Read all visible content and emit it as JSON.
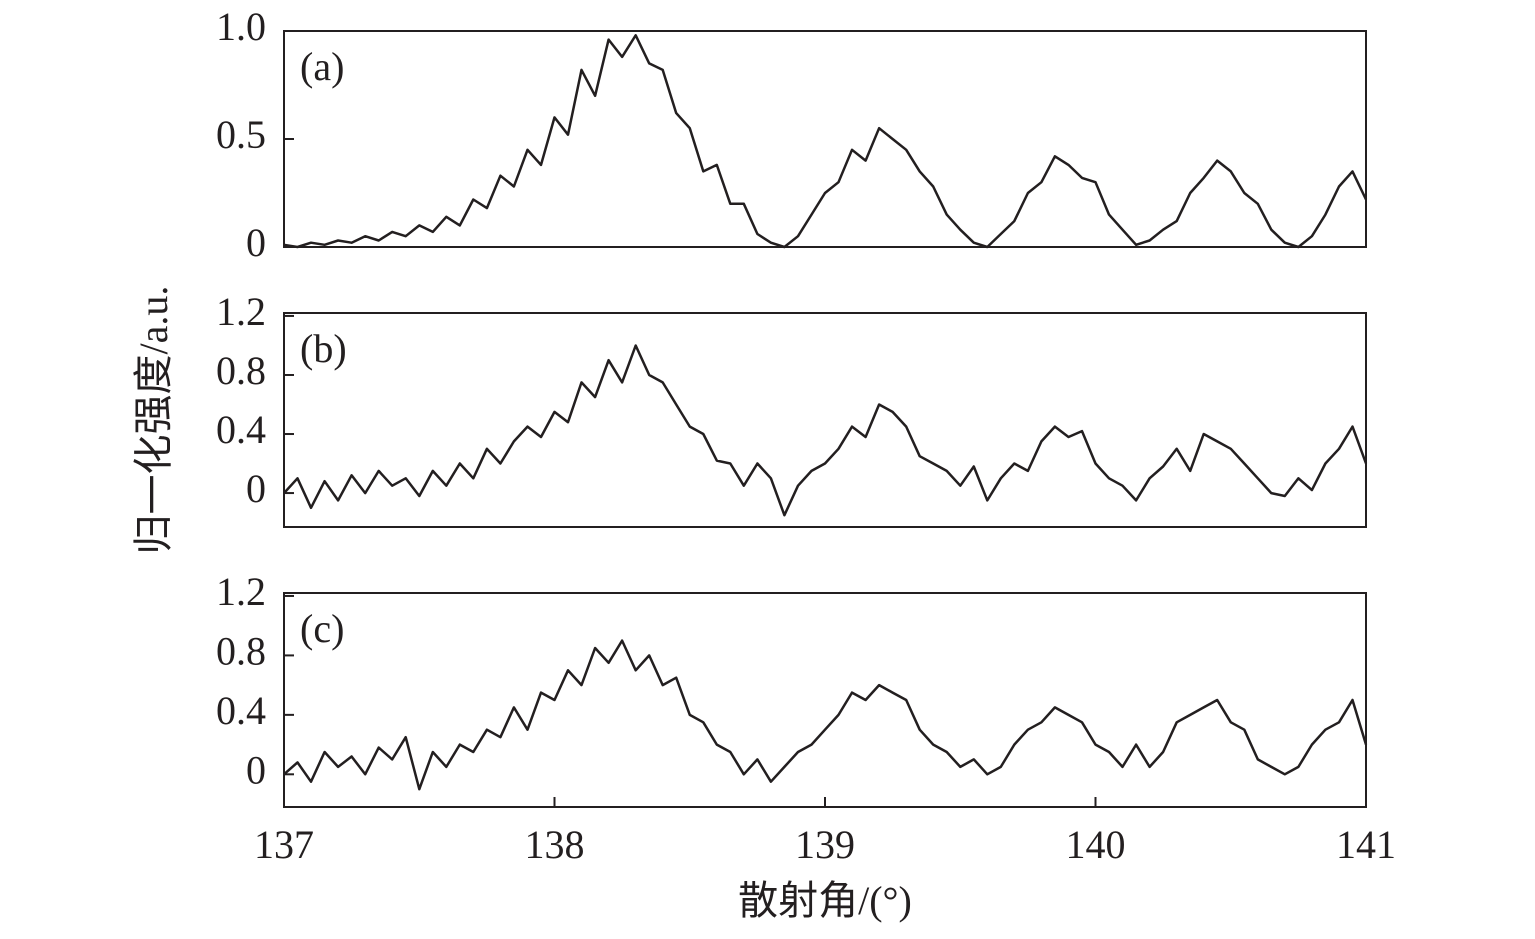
{
  "chart_data": [
    {
      "type": "line",
      "label": "(a)",
      "color": "#231f20",
      "x": [
        137,
        137.05,
        137.1,
        137.15,
        137.2,
        137.25,
        137.3,
        137.35,
        137.4,
        137.45,
        137.5,
        137.55,
        137.6,
        137.65,
        137.7,
        137.75,
        137.8,
        137.85,
        137.9,
        137.95,
        138,
        138.05,
        138.1,
        138.15,
        138.2,
        138.25,
        138.3,
        138.35,
        138.4,
        138.45,
        138.5,
        138.55,
        138.6,
        138.65,
        138.7,
        138.75,
        138.8,
        138.85,
        138.9,
        138.95,
        139,
        139.05,
        139.1,
        139.15,
        139.2,
        139.25,
        139.3,
        139.35,
        139.4,
        139.45,
        139.5,
        139.55,
        139.6,
        139.65,
        139.7,
        139.75,
        139.8,
        139.85,
        139.9,
        139.95,
        140,
        140.05,
        140.1,
        140.15,
        140.2,
        140.25,
        140.3,
        140.35,
        140.4,
        140.45,
        140.5,
        140.55,
        140.6,
        140.65,
        140.7,
        140.75,
        140.8,
        140.85,
        140.9,
        140.95,
        141
      ],
      "values": [
        0.01,
        0.0,
        0.02,
        0.01,
        0.03,
        0.02,
        0.05,
        0.03,
        0.07,
        0.05,
        0.1,
        0.07,
        0.14,
        0.1,
        0.22,
        0.18,
        0.33,
        0.28,
        0.45,
        0.38,
        0.6,
        0.52,
        0.82,
        0.7,
        0.96,
        0.88,
        0.98,
        0.85,
        0.82,
        0.62,
        0.55,
        0.35,
        0.38,
        0.2,
        0.2,
        0.06,
        0.02,
        0.0,
        0.05,
        0.15,
        0.25,
        0.3,
        0.45,
        0.4,
        0.55,
        0.5,
        0.45,
        0.35,
        0.28,
        0.15,
        0.08,
        0.02,
        0.0,
        0.06,
        0.12,
        0.25,
        0.3,
        0.42,
        0.38,
        0.32,
        0.3,
        0.15,
        0.08,
        0.01,
        0.03,
        0.08,
        0.12,
        0.25,
        0.32,
        0.4,
        0.35,
        0.25,
        0.2,
        0.08,
        0.02,
        0.0,
        0.05,
        0.15,
        0.28,
        0.35,
        0.22
      ],
      "xlim": [
        137,
        141
      ],
      "ylim": [
        0,
        1
      ],
      "yticks": [
        0,
        0.5,
        {
          "value": 1,
          "label": "1.0"
        }
      ]
    },
    {
      "type": "line",
      "label": "(b)",
      "color": "#231f20",
      "ylabel": "归一化强度/a.u.",
      "x": [
        137,
        137.05,
        137.1,
        137.15,
        137.2,
        137.25,
        137.3,
        137.35,
        137.4,
        137.45,
        137.5,
        137.55,
        137.6,
        137.65,
        137.7,
        137.75,
        137.8,
        137.85,
        137.9,
        137.95,
        138,
        138.05,
        138.1,
        138.15,
        138.2,
        138.25,
        138.3,
        138.35,
        138.4,
        138.45,
        138.5,
        138.55,
        138.6,
        138.65,
        138.7,
        138.75,
        138.8,
        138.85,
        138.9,
        138.95,
        139,
        139.05,
        139.1,
        139.15,
        139.2,
        139.25,
        139.3,
        139.35,
        139.4,
        139.45,
        139.5,
        139.55,
        139.6,
        139.65,
        139.7,
        139.75,
        139.8,
        139.85,
        139.9,
        139.95,
        140,
        140.05,
        140.1,
        140.15,
        140.2,
        140.25,
        140.3,
        140.35,
        140.4,
        140.45,
        140.5,
        140.55,
        140.6,
        140.65,
        140.7,
        140.75,
        140.8,
        140.85,
        140.9,
        140.95,
        141
      ],
      "values": [
        0.0,
        0.1,
        -0.1,
        0.08,
        -0.05,
        0.12,
        0.0,
        0.15,
        0.05,
        0.1,
        -0.02,
        0.15,
        0.05,
        0.2,
        0.1,
        0.3,
        0.2,
        0.35,
        0.45,
        0.38,
        0.55,
        0.48,
        0.75,
        0.65,
        0.9,
        0.75,
        1.0,
        0.8,
        0.75,
        0.6,
        0.45,
        0.4,
        0.22,
        0.2,
        0.05,
        0.2,
        0.1,
        -0.15,
        0.05,
        0.15,
        0.2,
        0.3,
        0.45,
        0.38,
        0.6,
        0.55,
        0.45,
        0.25,
        0.2,
        0.15,
        0.05,
        0.18,
        -0.05,
        0.1,
        0.2,
        0.15,
        0.35,
        0.45,
        0.38,
        0.42,
        0.2,
        0.1,
        0.05,
        -0.05,
        0.1,
        0.18,
        0.3,
        0.15,
        0.4,
        0.35,
        0.3,
        0.2,
        0.1,
        0.0,
        -0.02,
        0.1,
        0.02,
        0.2,
        0.3,
        0.45,
        0.2
      ],
      "xlim": [
        137,
        141
      ],
      "ylim": [
        -0.23,
        1.22
      ],
      "yticks": [
        0,
        0.4,
        0.8,
        1.2
      ]
    },
    {
      "type": "line",
      "label": "(c)",
      "color": "#231f20",
      "xlabel": "散射角/(°)",
      "x": [
        137,
        137.05,
        137.1,
        137.15,
        137.2,
        137.25,
        137.3,
        137.35,
        137.4,
        137.45,
        137.5,
        137.55,
        137.6,
        137.65,
        137.7,
        137.75,
        137.8,
        137.85,
        137.9,
        137.95,
        138,
        138.05,
        138.1,
        138.15,
        138.2,
        138.25,
        138.3,
        138.35,
        138.4,
        138.45,
        138.5,
        138.55,
        138.6,
        138.65,
        138.7,
        138.75,
        138.8,
        138.85,
        138.9,
        138.95,
        139,
        139.05,
        139.1,
        139.15,
        139.2,
        139.25,
        139.3,
        139.35,
        139.4,
        139.45,
        139.5,
        139.55,
        139.6,
        139.65,
        139.7,
        139.75,
        139.8,
        139.85,
        139.9,
        139.95,
        140,
        140.05,
        140.1,
        140.15,
        140.2,
        140.25,
        140.3,
        140.35,
        140.4,
        140.45,
        140.5,
        140.55,
        140.6,
        140.65,
        140.7,
        140.75,
        140.8,
        140.85,
        140.9,
        140.95,
        141
      ],
      "values": [
        0.0,
        0.08,
        -0.05,
        0.15,
        0.05,
        0.12,
        0.0,
        0.18,
        0.1,
        0.25,
        -0.1,
        0.15,
        0.05,
        0.2,
        0.15,
        0.3,
        0.25,
        0.45,
        0.3,
        0.55,
        0.5,
        0.7,
        0.6,
        0.85,
        0.75,
        0.9,
        0.7,
        0.8,
        0.6,
        0.65,
        0.4,
        0.35,
        0.2,
        0.15,
        0.0,
        0.1,
        -0.05,
        0.05,
        0.15,
        0.2,
        0.3,
        0.4,
        0.55,
        0.5,
        0.6,
        0.55,
        0.5,
        0.3,
        0.2,
        0.15,
        0.05,
        0.1,
        0.0,
        0.05,
        0.2,
        0.3,
        0.35,
        0.45,
        0.4,
        0.35,
        0.2,
        0.15,
        0.05,
        0.2,
        0.05,
        0.15,
        0.35,
        0.4,
        0.45,
        0.5,
        0.35,
        0.3,
        0.1,
        0.05,
        0.0,
        0.05,
        0.2,
        0.3,
        0.35,
        0.5,
        0.2
      ],
      "xlim": [
        137,
        141
      ],
      "ylim": [
        -0.22,
        1.22
      ],
      "yticks": [
        0,
        0.4,
        0.8,
        1.2
      ],
      "xticks": [
        137,
        138,
        139,
        140,
        141
      ]
    }
  ]
}
